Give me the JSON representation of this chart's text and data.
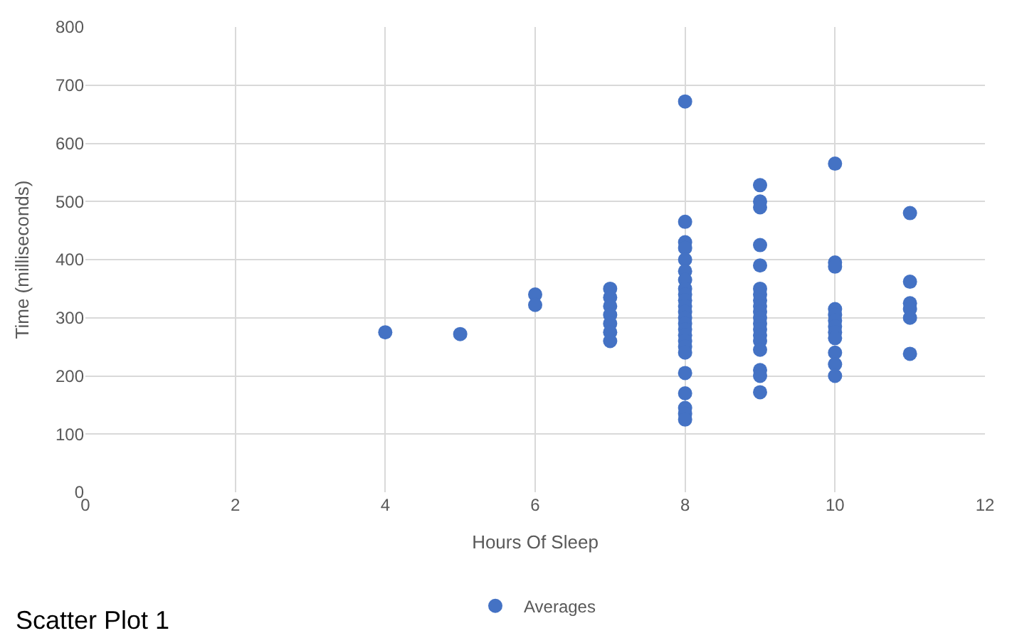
{
  "chart_data": {
    "type": "scatter",
    "xlabel": "Hours Of Sleep",
    "ylabel": "Time (milliseconds)",
    "xlim": [
      0,
      12
    ],
    "xticks": [
      0,
      2,
      4,
      6,
      8,
      10,
      12
    ],
    "ylim": [
      0,
      800
    ],
    "yticks": [
      0,
      100,
      200,
      300,
      400,
      500,
      600,
      700,
      800
    ],
    "grid": true,
    "legend": "bottom",
    "marker": "circle",
    "annotations": [
      "Scatter Plot 1"
    ],
    "series": [
      {
        "name": "Averages",
        "color": "#4472c4",
        "x": [
          4,
          5,
          6,
          6,
          7,
          7,
          7,
          7,
          7,
          7,
          7,
          8,
          8,
          8,
          8,
          8,
          8,
          8,
          8,
          8,
          8,
          8,
          8,
          8,
          8,
          8,
          8,
          8,
          8,
          8,
          8,
          8,
          8,
          8,
          8,
          9,
          9,
          9,
          9,
          9,
          9,
          9,
          9,
          9,
          9,
          9,
          9,
          9,
          9,
          9,
          9,
          9,
          9,
          9,
          10,
          10,
          10,
          10,
          10,
          10,
          10,
          10,
          10,
          10,
          10,
          10,
          11,
          11,
          11,
          11,
          11,
          11
        ],
        "values": [
          275,
          272,
          340,
          322,
          350,
          335,
          320,
          305,
          290,
          275,
          260,
          672,
          465,
          430,
          420,
          400,
          380,
          365,
          350,
          340,
          330,
          320,
          310,
          300,
          290,
          280,
          270,
          260,
          250,
          240,
          205,
          170,
          145,
          135,
          125,
          528,
          500,
          490,
          425,
          390,
          350,
          340,
          330,
          320,
          310,
          300,
          290,
          280,
          270,
          260,
          245,
          210,
          200,
          172,
          565,
          395,
          388,
          315,
          305,
          295,
          285,
          275,
          265,
          240,
          220,
          200,
          480,
          362,
          325,
          315,
          300,
          238
        ]
      }
    ]
  }
}
